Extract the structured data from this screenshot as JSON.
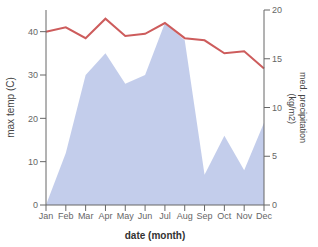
{
  "chart_data": {
    "type": "line",
    "categories": [
      "Jan",
      "Feb",
      "Mar",
      "Apr",
      "May",
      "Jun",
      "Jul",
      "Aug",
      "Sep",
      "Oct",
      "Nov",
      "Dec"
    ],
    "series": [
      {
        "type": "area",
        "color": "#b8c4e8",
        "values": [
          0,
          12,
          30,
          35,
          28,
          30,
          42,
          38,
          7,
          16,
          8,
          19
        ]
      },
      {
        "type": "line",
        "color": "#cd5c5c",
        "values": [
          40.0,
          41.0,
          38.5,
          43.0,
          39.0,
          39.5,
          42.0,
          38.5,
          38.0,
          35.0,
          35.5,
          31.5
        ]
      }
    ],
    "xlabel": "date (month)",
    "ylabel": "max temp (C)",
    "y2label": "med. precipitation\n (kg/m2)",
    "ylim": [
      0,
      45
    ],
    "yticks": [
      0,
      10,
      20,
      30,
      40
    ],
    "y2lim": [
      0,
      20
    ],
    "y2ticks": [
      0,
      5,
      10,
      15,
      20
    ],
    "grid": false
  }
}
